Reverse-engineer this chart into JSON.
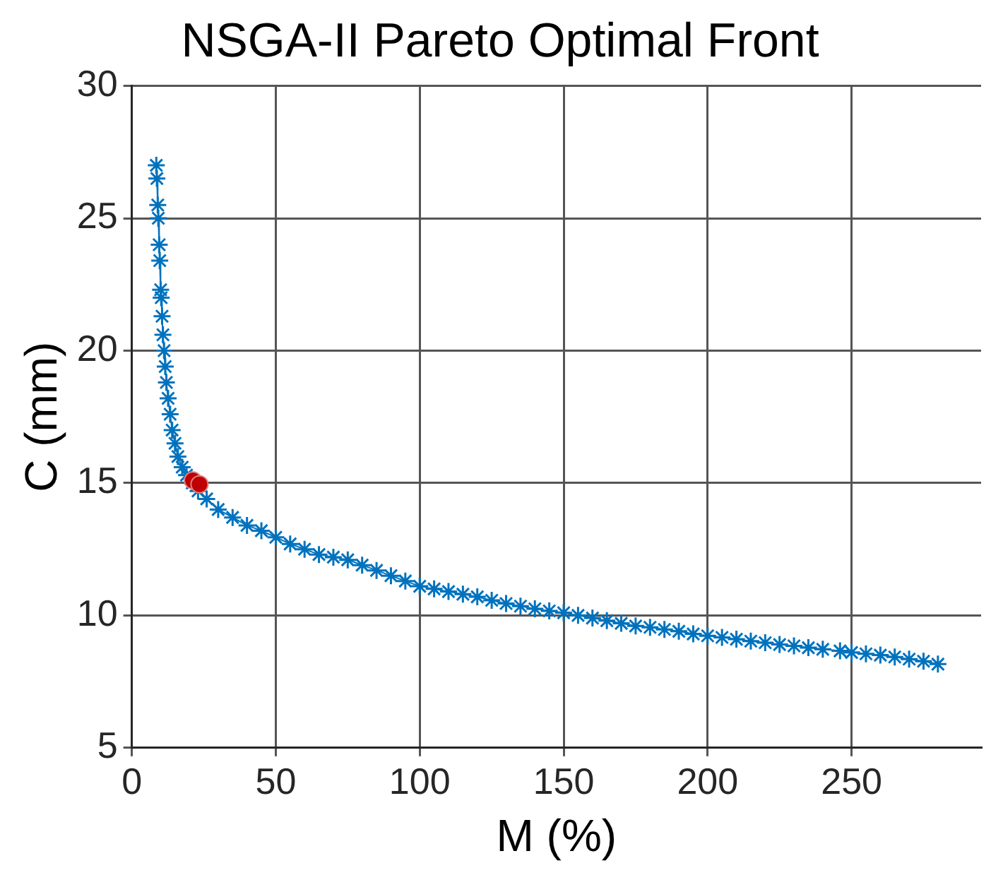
{
  "chart_data": {
    "type": "scatter",
    "title": "NSGA-II Pareto Optimal Front",
    "xlabel": "M (%)",
    "ylabel": "C (mm)",
    "xlim": [
      0,
      295
    ],
    "xticks": [
      0,
      50,
      100,
      150,
      200,
      250
    ],
    "ylim": [
      5,
      30
    ],
    "yticks": [
      5,
      10,
      15,
      20,
      25,
      30
    ],
    "grid": true,
    "series": [
      {
        "type": "line",
        "marker": "cross",
        "line_style": "solid",
        "color": "#0072bd",
        "x": [
          8.5,
          8.7,
          9.0,
          9.2,
          9.5,
          9.7,
          10.0,
          10.2,
          10.5,
          10.8,
          11.2,
          11.6,
          12.0,
          12.6,
          13.3,
          14,
          15,
          16,
          17.5,
          19,
          21,
          23,
          26,
          30,
          35,
          40,
          45,
          50,
          55,
          60,
          65,
          70,
          75,
          80,
          85,
          90,
          95,
          100,
          105,
          110,
          115,
          120,
          125,
          130,
          135,
          140,
          145,
          150,
          155,
          160,
          165,
          170,
          175,
          180,
          185,
          190,
          195,
          200,
          205,
          210,
          215,
          220,
          225,
          230,
          235,
          240,
          246,
          250,
          255,
          260,
          265,
          270,
          275,
          280
        ],
        "values": [
          27.0,
          26.5,
          25.5,
          25.0,
          24.0,
          23.4,
          22.3,
          22.0,
          21.3,
          20.6,
          20.0,
          19.4,
          18.8,
          18.2,
          17.6,
          17.0,
          16.5,
          16.0,
          15.6,
          15.3,
          15.0,
          14.7,
          14.4,
          14.0,
          13.7,
          13.4,
          13.2,
          12.95,
          12.7,
          12.5,
          12.3,
          12.2,
          12.1,
          11.9,
          11.7,
          11.5,
          11.3,
          11.1,
          11.0,
          10.9,
          10.8,
          10.7,
          10.57,
          10.45,
          10.35,
          10.25,
          10.17,
          10.1,
          10.0,
          9.9,
          9.8,
          9.7,
          9.6,
          9.55,
          9.47,
          9.4,
          9.3,
          9.23,
          9.17,
          9.1,
          9.03,
          8.97,
          8.9,
          8.85,
          8.78,
          8.72,
          8.66,
          8.6,
          8.55,
          8.5,
          8.43,
          8.35,
          8.27,
          8.16
        ]
      },
      {
        "type": "scatter",
        "marker": "circle",
        "color": "#c00000",
        "x": [
          21.2,
          23.5
        ],
        "values": [
          15.1,
          14.95
        ]
      }
    ]
  }
}
